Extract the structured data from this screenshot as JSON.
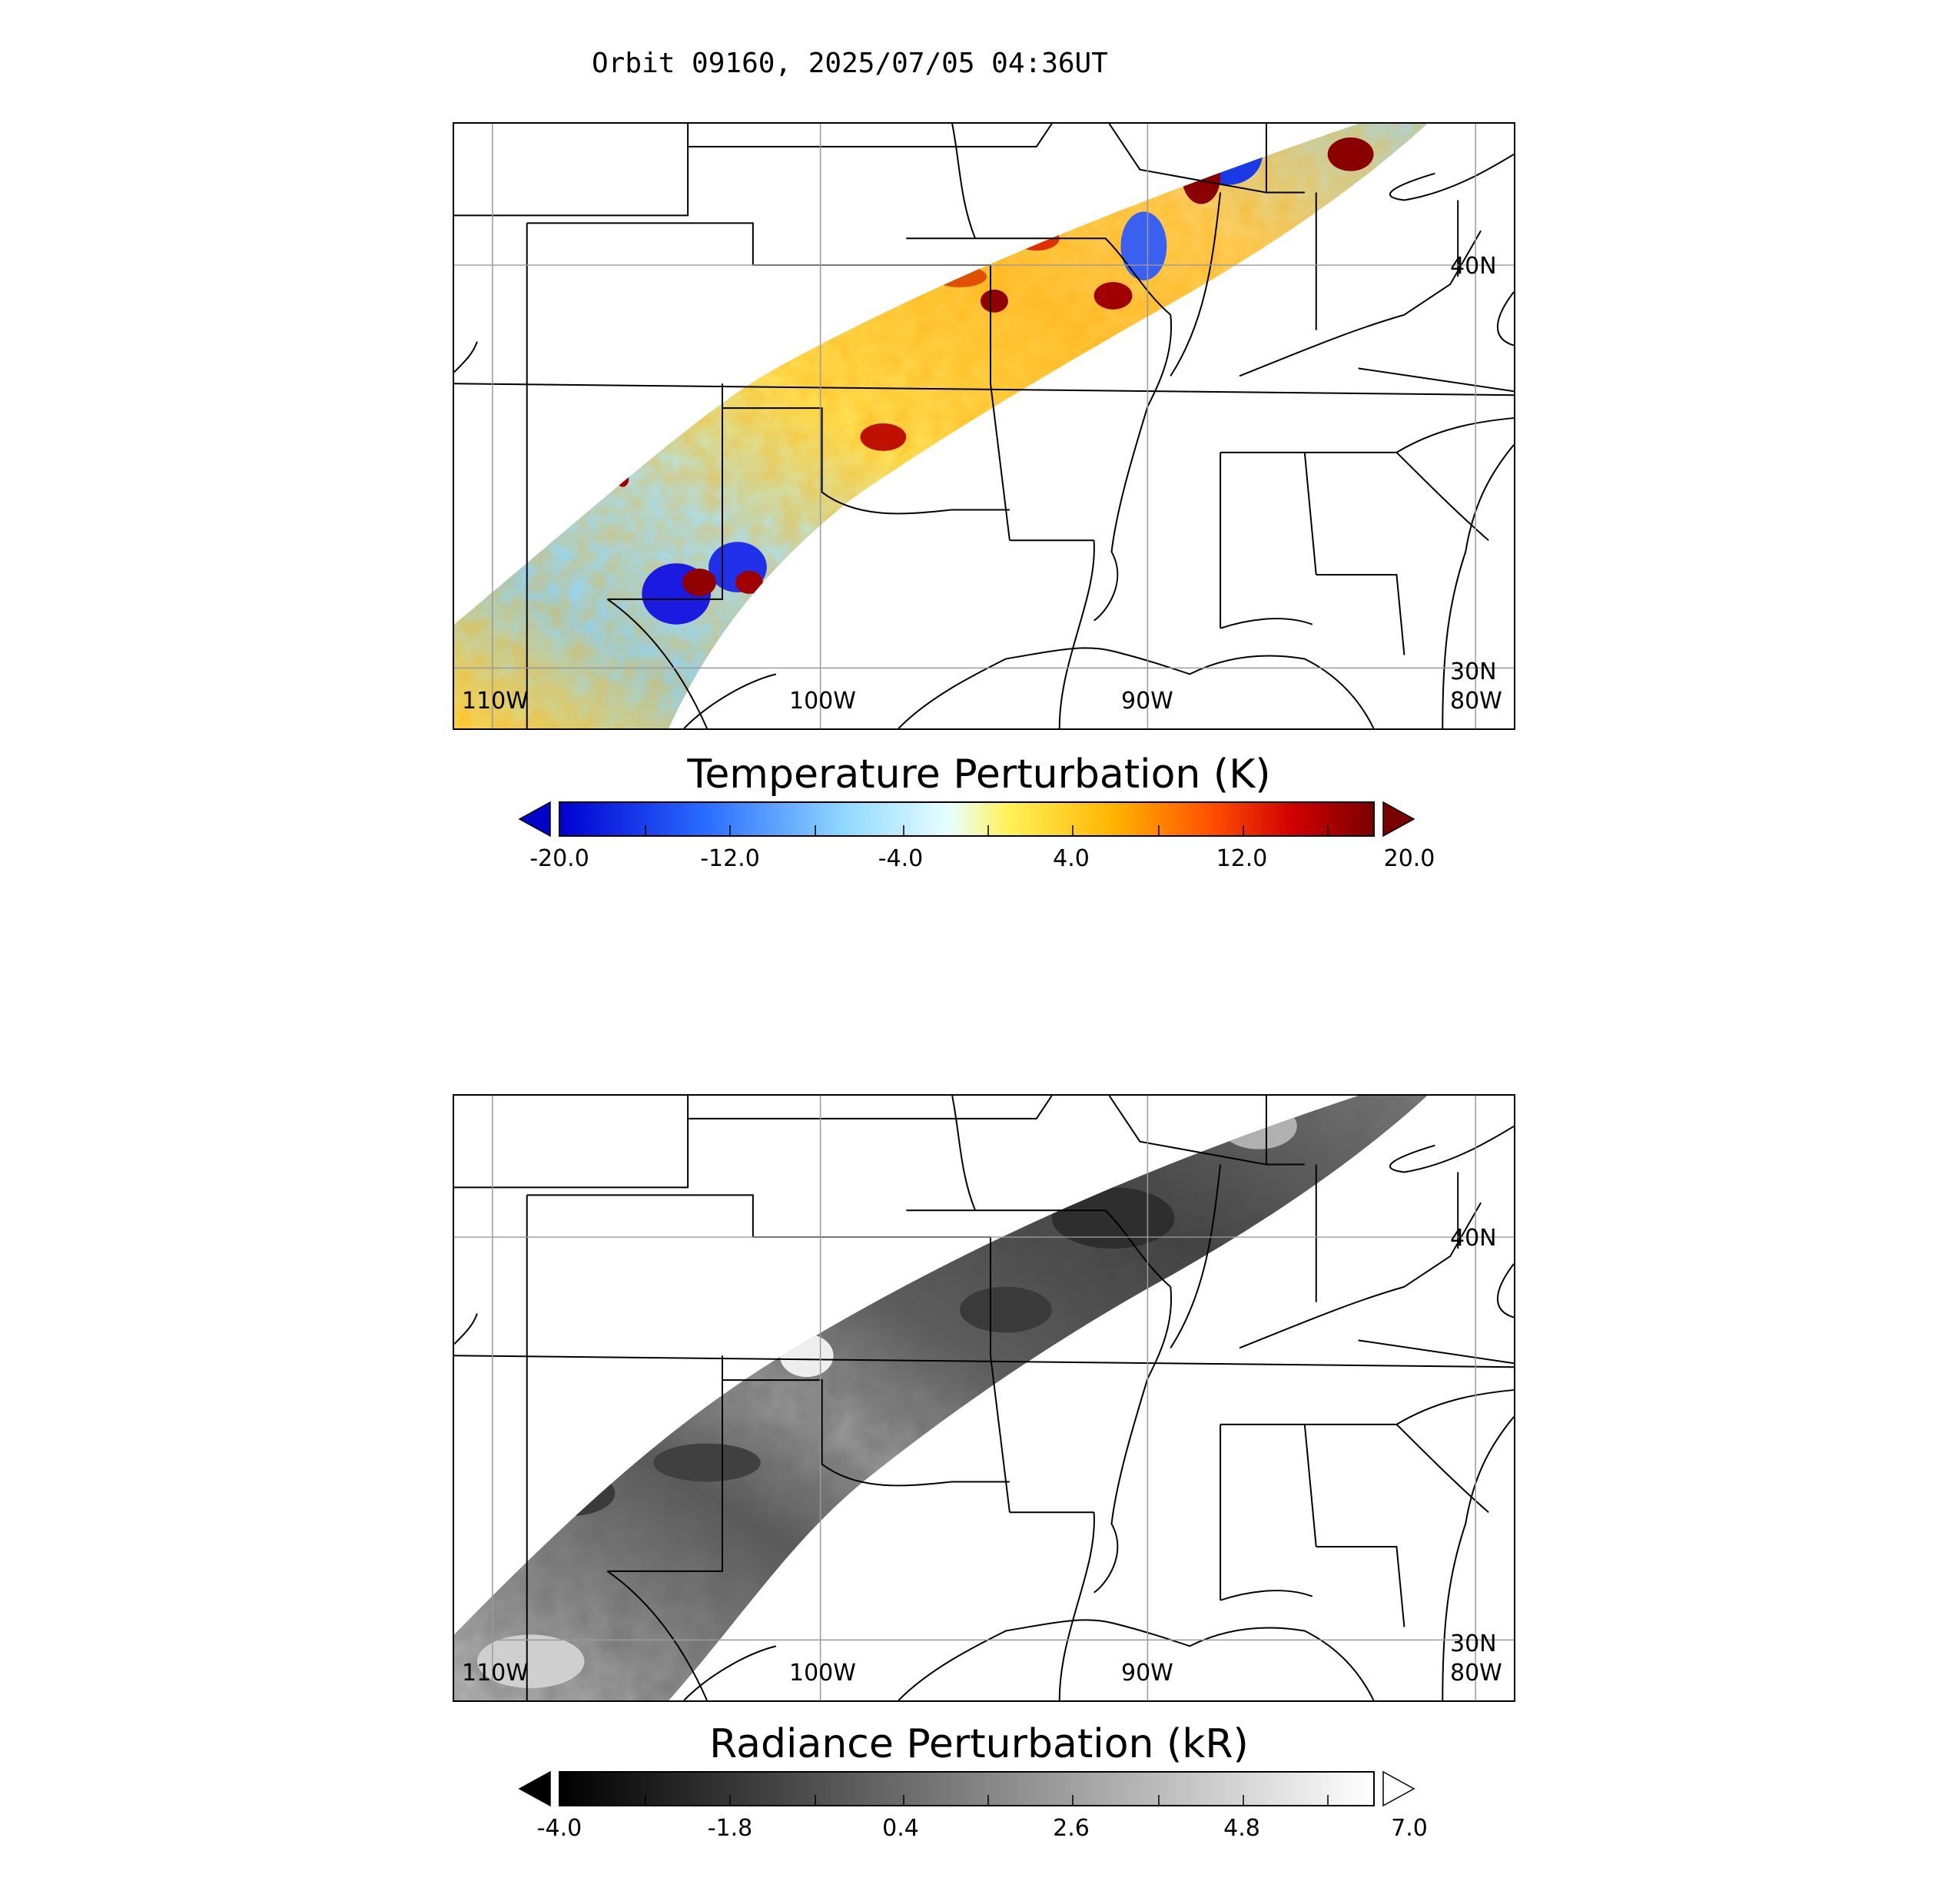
{
  "title": "Orbit 09160, 2025/07/05 04:36UT",
  "colors": {
    "temperature_scale": [
      "#08088f",
      "#0000ff",
      "#4a9bff",
      "#a0e8ff",
      "#ffffff",
      "#fff35a",
      "#ffc000",
      "#ff6a00",
      "#e00000",
      "#7a0000"
    ],
    "radiance_scale": [
      "#000000",
      "#ffffff"
    ],
    "coastline": "#000000",
    "grid": "#9a9a9a"
  },
  "maps": [
    {
      "id": "temperature",
      "colorbar_title": "Temperature Perturbation (K)",
      "colorbar_ticks": [
        "-20.0",
        "-12.0",
        "-4.0",
        "4.0",
        "12.0",
        "20.0"
      ],
      "lat_labels": [
        "40N",
        "30N"
      ],
      "lon_labels": [
        "110W",
        "100W",
        "90W",
        "80W"
      ]
    },
    {
      "id": "radiance",
      "colorbar_title": "Radiance Perturbation (kR)",
      "colorbar_ticks": [
        "-4.0",
        "-1.8",
        "0.4",
        "2.6",
        "4.8",
        "7.0"
      ],
      "lat_labels": [
        "40N",
        "30N"
      ],
      "lon_labels": [
        "110W",
        "100W",
        "90W",
        "80W"
      ]
    }
  ]
}
